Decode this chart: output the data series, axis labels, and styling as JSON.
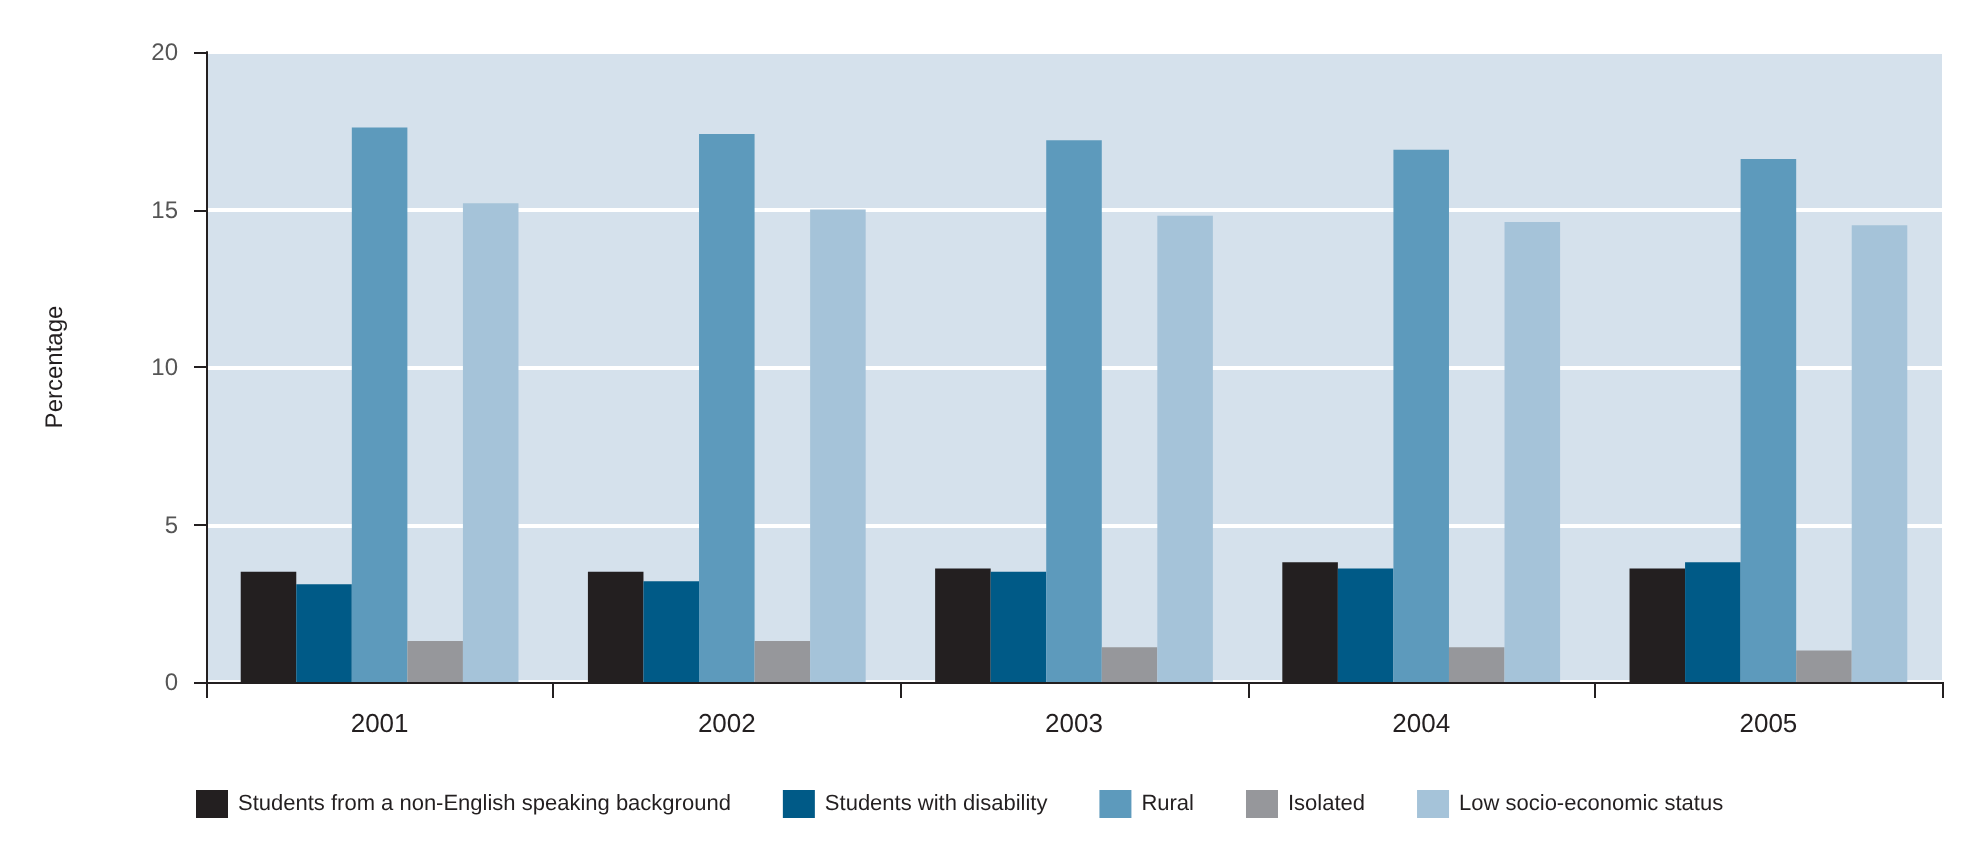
{
  "chart_data": {
    "type": "bar",
    "ylabel": "Percentage",
    "categories": [
      "2001",
      "2002",
      "2003",
      "2004",
      "2005"
    ],
    "series": [
      {
        "name": "Students from a non-English speaking background",
        "color": "#231f20",
        "values": [
          3.5,
          3.5,
          3.6,
          3.8,
          3.6
        ]
      },
      {
        "name": "Students with disability",
        "color": "#005a87",
        "values": [
          3.1,
          3.2,
          3.5,
          3.6,
          3.8
        ]
      },
      {
        "name": "Rural",
        "color": "#5d9abc",
        "values": [
          17.6,
          17.4,
          17.2,
          16.9,
          16.6
        ]
      },
      {
        "name": "Isolated",
        "color": "#96979b",
        "values": [
          1.3,
          1.3,
          1.1,
          1.1,
          1.0
        ]
      },
      {
        "name": "Low socio-economic status",
        "color": "#a5c3d9",
        "values": [
          15.2,
          15.0,
          14.8,
          14.6,
          14.5
        ]
      }
    ],
    "ylim": [
      0,
      20
    ],
    "yticks": [
      0,
      5,
      10,
      15,
      20
    ],
    "grid": "y",
    "legend": "bottom"
  }
}
